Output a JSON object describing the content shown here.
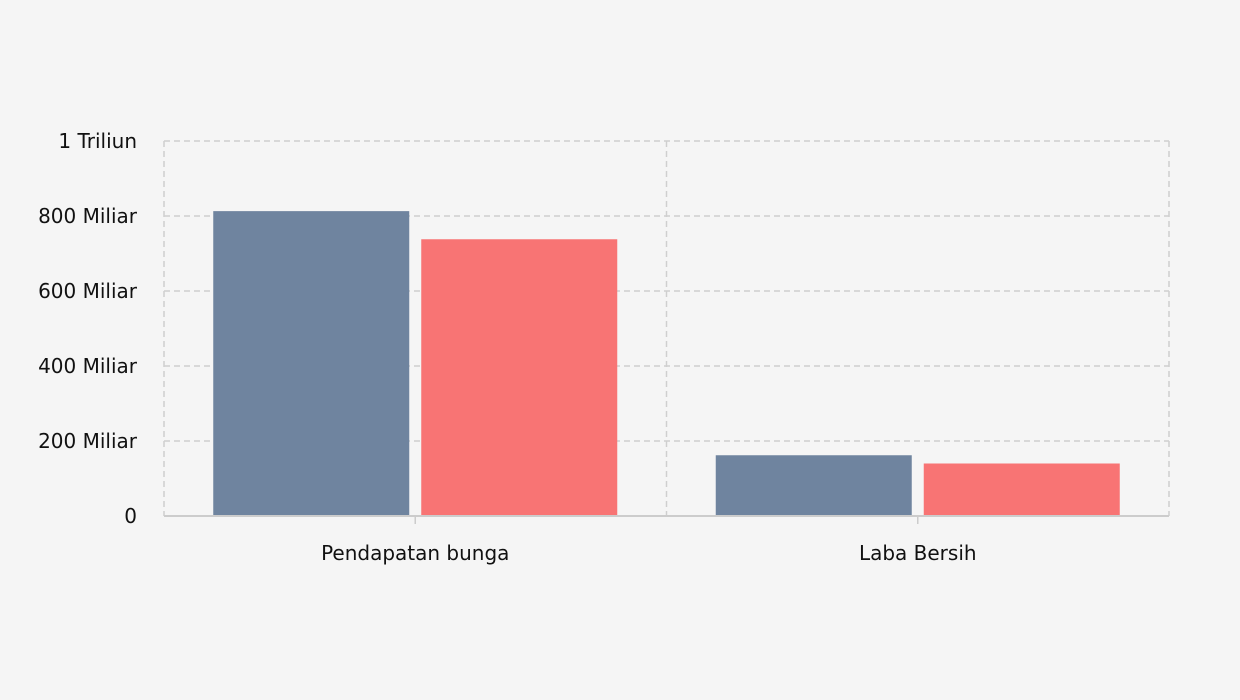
{
  "chart_data": {
    "type": "bar",
    "categories": [
      "Pendapatan bunga",
      "Laba Bersih"
    ],
    "series": [
      {
        "values": [
          813,
          162
        ],
        "color": "#6f849f"
      },
      {
        "values": [
          738,
          140
        ],
        "color": "#f87474"
      }
    ],
    "ylim": [
      0,
      1000
    ],
    "yticks": [
      {
        "value": 0,
        "label": "0"
      },
      {
        "value": 200,
        "label": "200 Miliar"
      },
      {
        "value": 400,
        "label": "400 Miliar"
      },
      {
        "value": 600,
        "label": "600 Miliar"
      },
      {
        "value": 800,
        "label": "800 Miliar"
      },
      {
        "value": 1000,
        "label": "1 Triliun"
      }
    ],
    "grid": true,
    "grid_style": "dashed",
    "grid_color": "#cfcfcf",
    "axis_color": "#cccccc",
    "background": "#f5f5f5"
  }
}
